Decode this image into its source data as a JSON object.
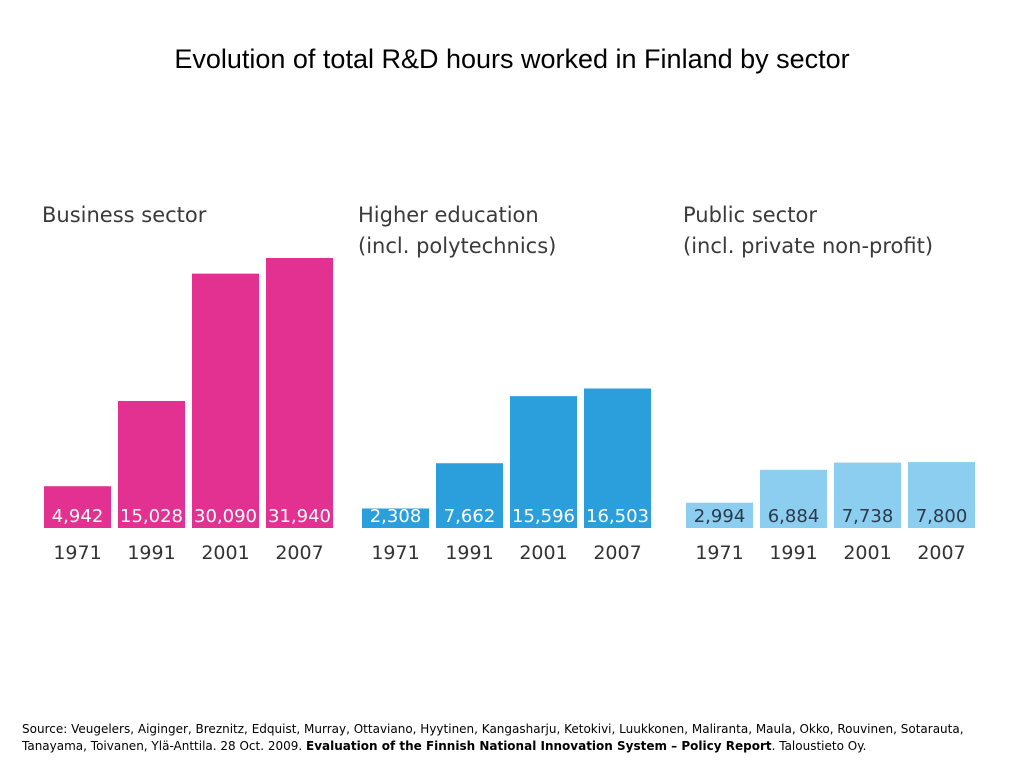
{
  "title": "Evolution of total R&D hours worked in Finland by sector",
  "chart_data": [
    {
      "type": "bar",
      "title_lines": [
        "Business sector"
      ],
      "color": "#e23191",
      "label_color": "#ffffff",
      "categories": [
        "1971",
        "1991",
        "2001",
        "2007"
      ],
      "values": [
        4942,
        15028,
        30090,
        31940
      ],
      "value_labels": [
        "4,942",
        "15,028",
        "30,090",
        "31,940"
      ]
    },
    {
      "type": "bar",
      "title_lines": [
        "Higher education",
        "(incl. polytechnics)"
      ],
      "color": "#2a9fdc",
      "label_color": "#ffffff",
      "categories": [
        "1971",
        "1991",
        "2001",
        "2007"
      ],
      "values": [
        2308,
        7662,
        15596,
        16503
      ],
      "value_labels": [
        "2,308",
        "7,662",
        "15,596",
        "16,503"
      ]
    },
    {
      "type": "bar",
      "title_lines": [
        "Public sector",
        "(incl. private non-profit)"
      ],
      "color": "#8ccef0",
      "label_color": "#2b3a4a",
      "categories": [
        "1971",
        "1991",
        "2001",
        "2007"
      ],
      "values": [
        2994,
        6884,
        7738,
        7800
      ],
      "value_labels": [
        "2,994",
        "6,884",
        "7,738",
        "7,800"
      ]
    }
  ],
  "source": {
    "prefix": "Source: Veugelers, Aiginger, Breznitz, Edquist, Murray, Ottaviano, Hyytinen, Kangasharju, Ketokivi, Luukkonen, Maliranta, Maula, Okko, Rouvinen, Sotarauta, Tanayama, Toivanen, Ylä-Anttila. 28 Oct. 2009. ",
    "bold": "Evaluation of the Finnish National Innovation System – Policy Report",
    "suffix": ". Taloustieto Oy."
  }
}
